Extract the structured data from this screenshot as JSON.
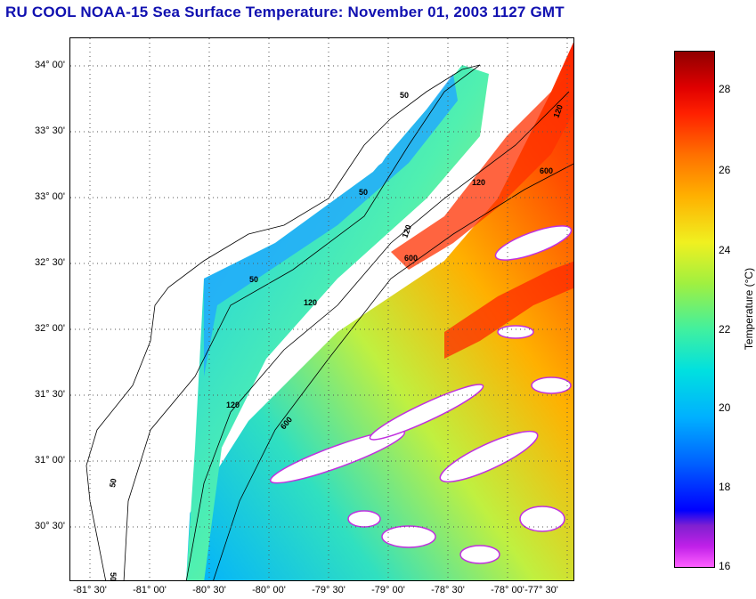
{
  "title": "RU COOL  NOAA-15  Sea Surface Temperature:  November 01, 2003 1127 GMT",
  "map": {
    "lat_ticks": [
      "34° 00'",
      "33° 30'",
      "33° 00'",
      "32° 30'",
      "32° 00'",
      "31° 30'",
      "31° 00'",
      "30° 30'"
    ],
    "lon_ticks": [
      "-81° 30'",
      "-81° 00'",
      "-80° 30'",
      "-80° 00'",
      "-79° 30'",
      "-79° 00'",
      "-78° 30'",
      "-78° 00'",
      "-77° 30'"
    ],
    "isobath_labels": [
      "50",
      "50",
      "50",
      "50",
      "120",
      "120",
      "120",
      "120",
      "120",
      "600",
      "600",
      "600",
      "50"
    ],
    "grid": true
  },
  "colorbar": {
    "label": "Temperature (°C)",
    "ticks": [
      "28",
      "26",
      "24",
      "22",
      "20",
      "18",
      "16"
    ],
    "min": 16,
    "max": 29
  }
}
